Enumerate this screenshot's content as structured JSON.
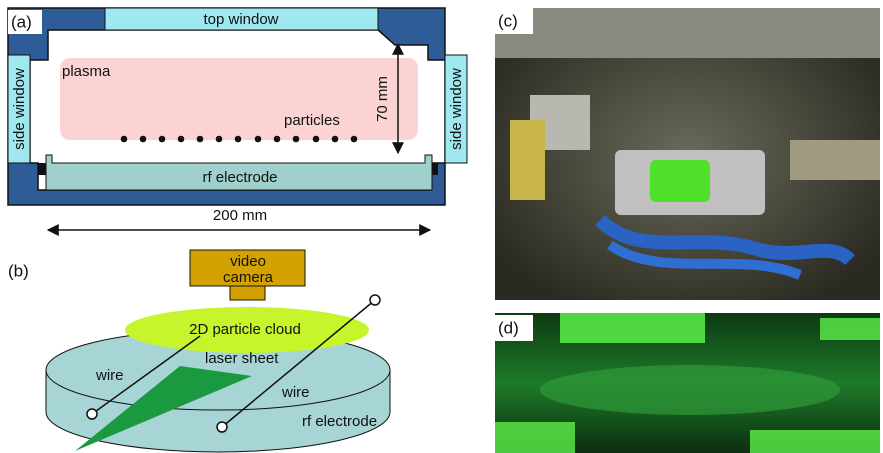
{
  "panel_a": {
    "label": "(a)",
    "top_window": "top window",
    "plasma": "plasma",
    "side_window_left": "side window",
    "side_window_right": "side window",
    "height": "70 mm",
    "particles": "particles",
    "electrode": "rf electrode",
    "width": "200 mm"
  },
  "panel_b": {
    "label": "(b)",
    "camera_line1": "video",
    "camera_line2": "camera",
    "cloud": "2D particle cloud",
    "wire_left": "wire",
    "laser": "laser sheet",
    "wire_right": "wire",
    "electrode": "rf electrode"
  },
  "panel_c": {
    "label": "(c)"
  },
  "panel_d": {
    "label": "(d)"
  }
}
